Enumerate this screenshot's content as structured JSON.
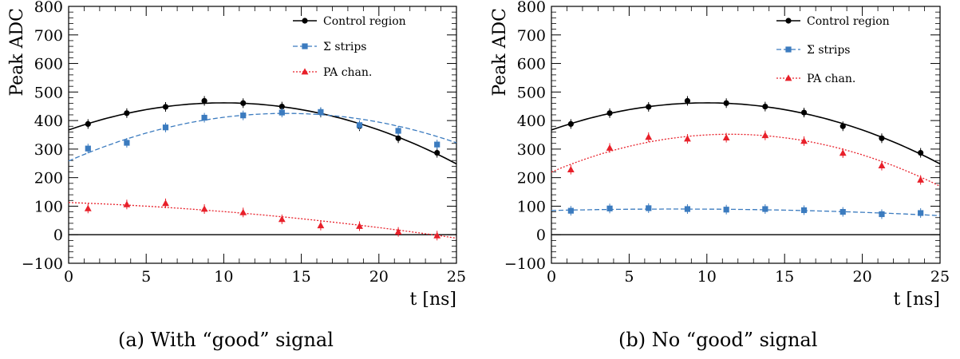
{
  "chart_data": [
    {
      "type": "line",
      "caption": "(a)  With “good” signal",
      "xlabel": "t [ns]",
      "ylabel": "Peak ADC",
      "xlim": [
        0,
        25
      ],
      "ylim": [
        -100,
        800
      ],
      "xticks": [
        0,
        5,
        10,
        15,
        20,
        25
      ],
      "yticks": [
        -100,
        0,
        100,
        200,
        300,
        400,
        500,
        600,
        700,
        800
      ],
      "grid": false,
      "legend_position": "top-right",
      "series": [
        {
          "name": "Control region",
          "marker": "circle",
          "color": "#000000",
          "line": "solid",
          "x": [
            1.25,
            3.75,
            6.25,
            8.75,
            11.25,
            13.75,
            16.25,
            18.75,
            21.25,
            23.75
          ],
          "y": [
            388,
            426,
            448,
            469,
            461,
            449,
            428,
            380,
            338,
            287
          ],
          "fit": {
            "x0": 10,
            "y0": 462,
            "a": -0.95
          }
        },
        {
          "name": "Σ strips",
          "marker": "square",
          "color": "#3b7bbf",
          "line": "dashed",
          "x": [
            1.25,
            3.75,
            6.25,
            8.75,
            11.25,
            13.75,
            16.25,
            18.75,
            21.25,
            23.75
          ],
          "y": [
            302,
            322,
            376,
            410,
            418,
            428,
            430,
            384,
            364,
            316
          ],
          "fit": {
            "x0": 14,
            "y0": 425,
            "a": -0.85
          }
        },
        {
          "name": "PA chan.",
          "marker": "triangle",
          "color": "#e8202a",
          "line": "dotted",
          "x": [
            1.25,
            3.75,
            6.25,
            8.75,
            11.25,
            13.75,
            16.25,
            18.75,
            21.25,
            23.75
          ],
          "y": [
            92,
            106,
            110,
            90,
            78,
            54,
            32,
            30,
            10,
            -3
          ],
          "fit": {
            "x0": 0,
            "y0": 113,
            "a": -0.12,
            "b": -2.0
          }
        }
      ]
    },
    {
      "type": "line",
      "caption": "(b)  No “good” signal",
      "xlabel": "t [ns]",
      "ylabel": "Peak ADC",
      "xlim": [
        0,
        25
      ],
      "ylim": [
        -100,
        800
      ],
      "xticks": [
        0,
        5,
        10,
        15,
        20,
        25
      ],
      "yticks": [
        -100,
        0,
        100,
        200,
        300,
        400,
        500,
        600,
        700,
        800
      ],
      "grid": false,
      "legend_position": "top-right",
      "series": [
        {
          "name": "Control region",
          "marker": "circle",
          "color": "#000000",
          "line": "solid",
          "x": [
            1.25,
            3.75,
            6.25,
            8.75,
            11.25,
            13.75,
            16.25,
            18.75,
            21.25,
            23.75
          ],
          "y": [
            388,
            426,
            448,
            469,
            461,
            449,
            428,
            380,
            338,
            287
          ],
          "fit": {
            "x0": 10,
            "y0": 462,
            "a": -0.95
          }
        },
        {
          "name": "Σ strips",
          "marker": "square",
          "color": "#3b7bbf",
          "line": "dashed",
          "x": [
            1.25,
            3.75,
            6.25,
            8.75,
            11.25,
            13.75,
            16.25,
            18.75,
            21.25,
            23.75
          ],
          "y": [
            84,
            92,
            93,
            90,
            88,
            90,
            86,
            80,
            72,
            76
          ],
          "fit": {
            "x0": 8,
            "y0": 90,
            "a": -0.08
          }
        },
        {
          "name": "PA chan.",
          "marker": "triangle",
          "color": "#e8202a",
          "line": "dotted",
          "x": [
            1.25,
            3.75,
            6.25,
            8.75,
            11.25,
            13.75,
            16.25,
            18.75,
            21.25,
            23.75
          ],
          "y": [
            228,
            304,
            342,
            336,
            340,
            348,
            328,
            286,
            242,
            192
          ],
          "fit": {
            "x0": 11.5,
            "y0": 352,
            "a": -1.0
          }
        }
      ]
    }
  ]
}
